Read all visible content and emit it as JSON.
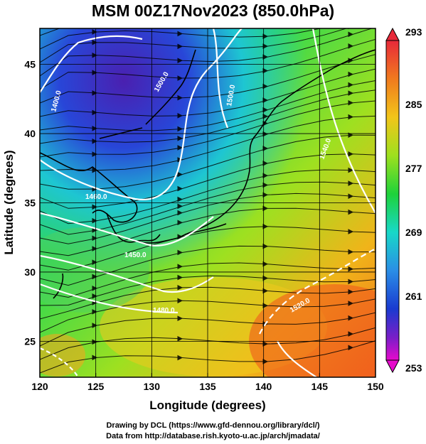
{
  "title": "MSM 00Z17Nov2023 (850.0hPa)",
  "map": {
    "xlabel": "Longitude (degrees)",
    "ylabel": "Latitude  (degrees)",
    "lon_range": [
      120,
      150
    ],
    "lat_range": [
      22.4,
      47.6
    ],
    "lon_ticks": [
      "120",
      "125",
      "130",
      "135",
      "140",
      "145",
      "150"
    ],
    "lat_ticks": [
      "25",
      "30",
      "35",
      "40",
      "45"
    ],
    "lon_tick_values": [
      120,
      125,
      130,
      135,
      140,
      145,
      150
    ],
    "lat_tick_values": [
      25,
      30,
      35,
      40,
      45
    ],
    "grid": true,
    "field": "temperature (K)",
    "contour_labels": [
      "1400.0",
      "1500.0",
      "1460.0",
      "1450.0",
      "1480.0",
      "1500.0",
      "1520.0",
      "1540.0"
    ]
  },
  "colorbar": {
    "labels": [
      "293",
      "285",
      "277",
      "269",
      "261",
      "253"
    ],
    "values": [
      293,
      285,
      277,
      269,
      261,
      253
    ],
    "colors": [
      "#e8293a",
      "#f07a1e",
      "#f2c51a",
      "#9ee01e",
      "#1ed23a",
      "#18d8c8",
      "#2a8ee6",
      "#1a3ad0",
      "#7a1ec8",
      "#e60acc"
    ]
  },
  "credits": {
    "line1": "Drawing by DCL (https://www.gfd-dennou.org/library/dcl/)",
    "line2": "Data from http://database.rish.kyoto-u.ac.jp/arch/jmadata/"
  }
}
